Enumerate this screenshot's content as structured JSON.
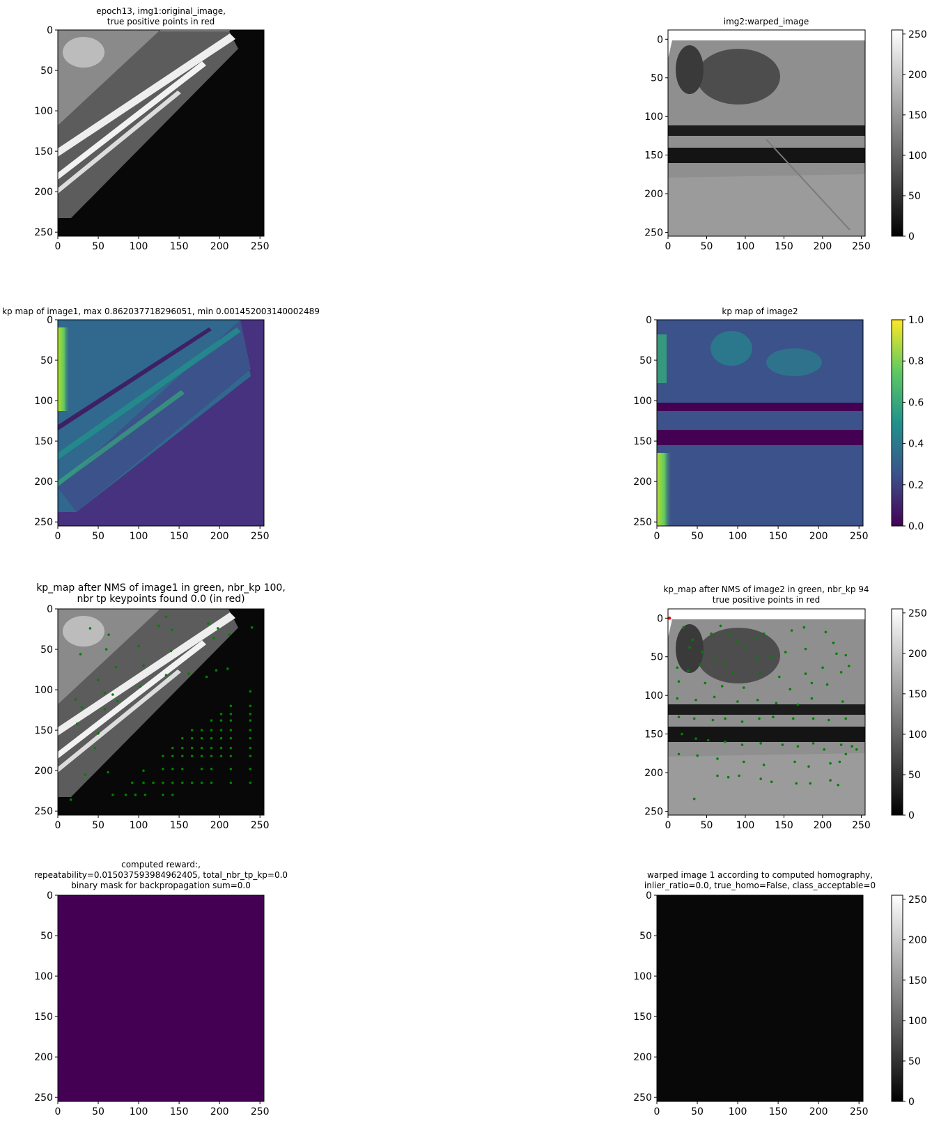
{
  "figure": {
    "titles": {
      "img1": [
        "epoch13, img1:original_image,",
        "true positive points in red"
      ],
      "img2": [
        "img2:warped_image"
      ],
      "kp1": [
        "kp map of image1, max 0.862037718296051, min 0.001452003140002489"
      ],
      "kp2": [
        "kp map of image2"
      ],
      "nms1": [
        "kp_map after NMS of image1 in green, nbr_kp 100,",
        "nbr tp keypoints found 0.0 (in red)"
      ],
      "nms2": [
        "kp_map after NMS of image2 in green, nbr_kp 94",
        "true positive points in red"
      ],
      "reward": [
        "computed reward:,",
        "repeatability=0.015037593984962405, total_nbr_tp_kp=0.0",
        "binary mask for backpropagation sum=0.0"
      ],
      "warp": [
        "warped image 1 according to computed homography,",
        "inlier_ratio=0.0, true_homo=False, class_acceptable=0"
      ]
    },
    "colorbars": {
      "gray": {
        "ticks": [
          "0",
          "50",
          "100",
          "150",
          "200",
          "250"
        ],
        "range": [
          0,
          255
        ]
      },
      "viridis": {
        "ticks": [
          "0.0",
          "0.2",
          "0.4",
          "0.6",
          "0.8",
          "1.0"
        ],
        "range": [
          0,
          1
        ]
      }
    },
    "colors": {
      "keypoint": "#008000",
      "true_positive": "#ff0000",
      "viridis_low": "#440154",
      "viridis_mid": "#21918c",
      "viridis_high": "#fde725"
    }
  },
  "chart_data": [
    {
      "type": "heatmap",
      "title": "epoch13, img1:original_image, true positive points in red",
      "xlim": [
        0,
        255
      ],
      "ylim": [
        255,
        0
      ],
      "xticks": [
        0,
        50,
        100,
        150,
        200,
        250
      ],
      "yticks": [
        0,
        50,
        100,
        150,
        200,
        250
      ],
      "colormap": "gray"
    },
    {
      "type": "heatmap",
      "title": "img2:warped_image",
      "xlim": [
        0,
        255
      ],
      "ylim": [
        255,
        -12
      ],
      "xticks": [
        0,
        50,
        100,
        150,
        200,
        250
      ],
      "yticks": [
        0,
        50,
        100,
        150,
        200,
        250
      ],
      "colormap": "gray",
      "colorbar": [
        0,
        255
      ]
    },
    {
      "type": "heatmap",
      "title": "kp map of image1, max 0.862037718296051, min 0.001452003140002489",
      "xlim": [
        0,
        255
      ],
      "ylim": [
        255,
        0
      ],
      "xticks": [
        0,
        50,
        100,
        150,
        200,
        250
      ],
      "yticks": [
        0,
        50,
        100,
        150,
        200,
        250
      ],
      "colormap": "viridis"
    },
    {
      "type": "heatmap",
      "title": "kp map of image2",
      "xlim": [
        0,
        255
      ],
      "ylim": [
        255,
        0
      ],
      "xticks": [
        0,
        50,
        100,
        150,
        200,
        250
      ],
      "yticks": [
        0,
        50,
        100,
        150,
        200,
        250
      ],
      "colormap": "viridis",
      "colorbar": [
        0.0,
        1.0
      ]
    },
    {
      "type": "scatter",
      "title": "kp_map after NMS of image1 in green, nbr_kp 100, nbr tp keypoints found 0.0 (in red)",
      "xlim": [
        0,
        255
      ],
      "ylim": [
        255,
        0
      ],
      "colormap": "gray",
      "keypoints": [
        [
          40,
          24
        ],
        [
          63,
          32
        ],
        [
          125,
          21
        ],
        [
          134,
          10
        ],
        [
          141,
          26
        ],
        [
          186,
          18
        ],
        [
          198,
          24
        ],
        [
          212,
          32
        ],
        [
          240,
          23
        ],
        [
          28,
          56
        ],
        [
          60,
          50
        ],
        [
          72,
          72
        ],
        [
          100,
          46
        ],
        [
          140,
          52
        ],
        [
          193,
          36
        ],
        [
          106,
          70
        ],
        [
          134,
          82
        ],
        [
          162,
          80
        ],
        [
          184,
          84
        ],
        [
          196,
          76
        ],
        [
          210,
          74
        ],
        [
          50,
          88
        ],
        [
          58,
          104
        ],
        [
          68,
          106
        ],
        [
          102,
          96
        ],
        [
          22,
          112
        ],
        [
          30,
          122
        ],
        [
          24,
          142
        ],
        [
          58,
          124
        ],
        [
          74,
          114
        ],
        [
          238,
          102
        ],
        [
          214,
          120
        ],
        [
          238,
          120
        ],
        [
          202,
          130
        ],
        [
          214,
          130
        ],
        [
          238,
          130
        ],
        [
          190,
          138
        ],
        [
          202,
          138
        ],
        [
          214,
          138
        ],
        [
          238,
          138
        ],
        [
          166,
          150
        ],
        [
          178,
          150
        ],
        [
          190,
          150
        ],
        [
          202,
          150
        ],
        [
          214,
          150
        ],
        [
          238,
          150
        ],
        [
          50,
          154
        ],
        [
          154,
          160
        ],
        [
          166,
          160
        ],
        [
          178,
          160
        ],
        [
          190,
          160
        ],
        [
          202,
          160
        ],
        [
          214,
          160
        ],
        [
          238,
          160
        ],
        [
          46,
          172
        ],
        [
          142,
          172
        ],
        [
          154,
          172
        ],
        [
          166,
          172
        ],
        [
          178,
          172
        ],
        [
          190,
          172
        ],
        [
          202,
          172
        ],
        [
          214,
          172
        ],
        [
          238,
          172
        ],
        [
          130,
          182
        ],
        [
          142,
          182
        ],
        [
          154,
          182
        ],
        [
          166,
          182
        ],
        [
          178,
          182
        ],
        [
          190,
          182
        ],
        [
          202,
          182
        ],
        [
          214,
          182
        ],
        [
          238,
          182
        ],
        [
          62,
          202
        ],
        [
          106,
          200
        ],
        [
          130,
          198
        ],
        [
          142,
          198
        ],
        [
          154,
          198
        ],
        [
          178,
          198
        ],
        [
          190,
          198
        ],
        [
          214,
          198
        ],
        [
          238,
          198
        ],
        [
          34,
          205
        ],
        [
          92,
          215
        ],
        [
          106,
          215
        ],
        [
          118,
          215
        ],
        [
          130,
          215
        ],
        [
          142,
          215
        ],
        [
          154,
          215
        ],
        [
          166,
          215
        ],
        [
          178,
          215
        ],
        [
          190,
          215
        ],
        [
          214,
          215
        ],
        [
          238,
          215
        ],
        [
          68,
          230
        ],
        [
          84,
          230
        ],
        [
          96,
          230
        ],
        [
          108,
          230
        ],
        [
          130,
          230
        ],
        [
          142,
          230
        ],
        [
          16,
          236
        ]
      ],
      "true_positives": []
    },
    {
      "type": "scatter",
      "title": "kp_map after NMS of image2 in green, nbr_kp 94, true positive points in red",
      "xlim": [
        0,
        255
      ],
      "ylim": [
        255,
        -12
      ],
      "colormap": "gray",
      "colorbar": [
        0,
        255
      ],
      "keypoints": [
        [
          20,
          12
        ],
        [
          32,
          28
        ],
        [
          56,
          20
        ],
        [
          68,
          10
        ],
        [
          80,
          22
        ],
        [
          90,
          30
        ],
        [
          100,
          38
        ],
        [
          114,
          26
        ],
        [
          124,
          20
        ],
        [
          160,
          16
        ],
        [
          176,
          12
        ],
        [
          204,
          18
        ],
        [
          214,
          32
        ],
        [
          28,
          38
        ],
        [
          44,
          44
        ],
        [
          60,
          52
        ],
        [
          74,
          58
        ],
        [
          116,
          52
        ],
        [
          134,
          50
        ],
        [
          152,
          44
        ],
        [
          178,
          40
        ],
        [
          218,
          46
        ],
        [
          230,
          48
        ],
        [
          12,
          64
        ],
        [
          26,
          68
        ],
        [
          42,
          60
        ],
        [
          84,
          70
        ],
        [
          118,
          72
        ],
        [
          144,
          76
        ],
        [
          178,
          72
        ],
        [
          200,
          64
        ],
        [
          224,
          70
        ],
        [
          234,
          62
        ],
        [
          14,
          82
        ],
        [
          48,
          84
        ],
        [
          70,
          88
        ],
        [
          98,
          90
        ],
        [
          158,
          92
        ],
        [
          186,
          84
        ],
        [
          206,
          86
        ],
        [
          12,
          104
        ],
        [
          36,
          106
        ],
        [
          60,
          102
        ],
        [
          90,
          108
        ],
        [
          116,
          106
        ],
        [
          140,
          110
        ],
        [
          168,
          112
        ],
        [
          186,
          104
        ],
        [
          226,
          108
        ],
        [
          14,
          128
        ],
        [
          34,
          130
        ],
        [
          58,
          132
        ],
        [
          74,
          130
        ],
        [
          96,
          134
        ],
        [
          118,
          130
        ],
        [
          136,
          128
        ],
        [
          162,
          130
        ],
        [
          188,
          130
        ],
        [
          208,
          132
        ],
        [
          230,
          130
        ],
        [
          18,
          150
        ],
        [
          36,
          156
        ],
        [
          52,
          158
        ],
        [
          74,
          160
        ],
        [
          96,
          164
        ],
        [
          120,
          162
        ],
        [
          148,
          164
        ],
        [
          168,
          166
        ],
        [
          188,
          162
        ],
        [
          202,
          170
        ],
        [
          224,
          164
        ],
        [
          238,
          166
        ],
        [
          14,
          176
        ],
        [
          38,
          178
        ],
        [
          64,
          182
        ],
        [
          98,
          186
        ],
        [
          124,
          190
        ],
        [
          164,
          186
        ],
        [
          182,
          192
        ],
        [
          210,
          188
        ],
        [
          230,
          176
        ],
        [
          64,
          204
        ],
        [
          78,
          206
        ],
        [
          92,
          204
        ],
        [
          120,
          208
        ],
        [
          134,
          212
        ],
        [
          166,
          214
        ],
        [
          184,
          214
        ],
        [
          210,
          210
        ],
        [
          220,
          216
        ],
        [
          244,
          170
        ],
        [
          222,
          186
        ],
        [
          34,
          234
        ],
        [
          2,
          0
        ]
      ],
      "true_positives": [
        [
          2,
          0
        ]
      ]
    },
    {
      "type": "heatmap",
      "title": "computed reward:, repeatability=0.015037593984962405, total_nbr_tp_kp=0.0, binary mask for backpropagation sum=0.0",
      "xlim": [
        0,
        255
      ],
      "ylim": [
        255,
        0
      ],
      "colormap": "viridis",
      "uniform_value": 0.0
    },
    {
      "type": "heatmap",
      "title": "warped image 1 according to computed homography, inlier_ratio=0.0, true_homo=False, class_acceptable=0",
      "xlim": [
        0,
        255
      ],
      "ylim": [
        255,
        0
      ],
      "colormap": "gray",
      "colorbar": [
        0,
        255
      ],
      "uniform_value": 8
    }
  ]
}
